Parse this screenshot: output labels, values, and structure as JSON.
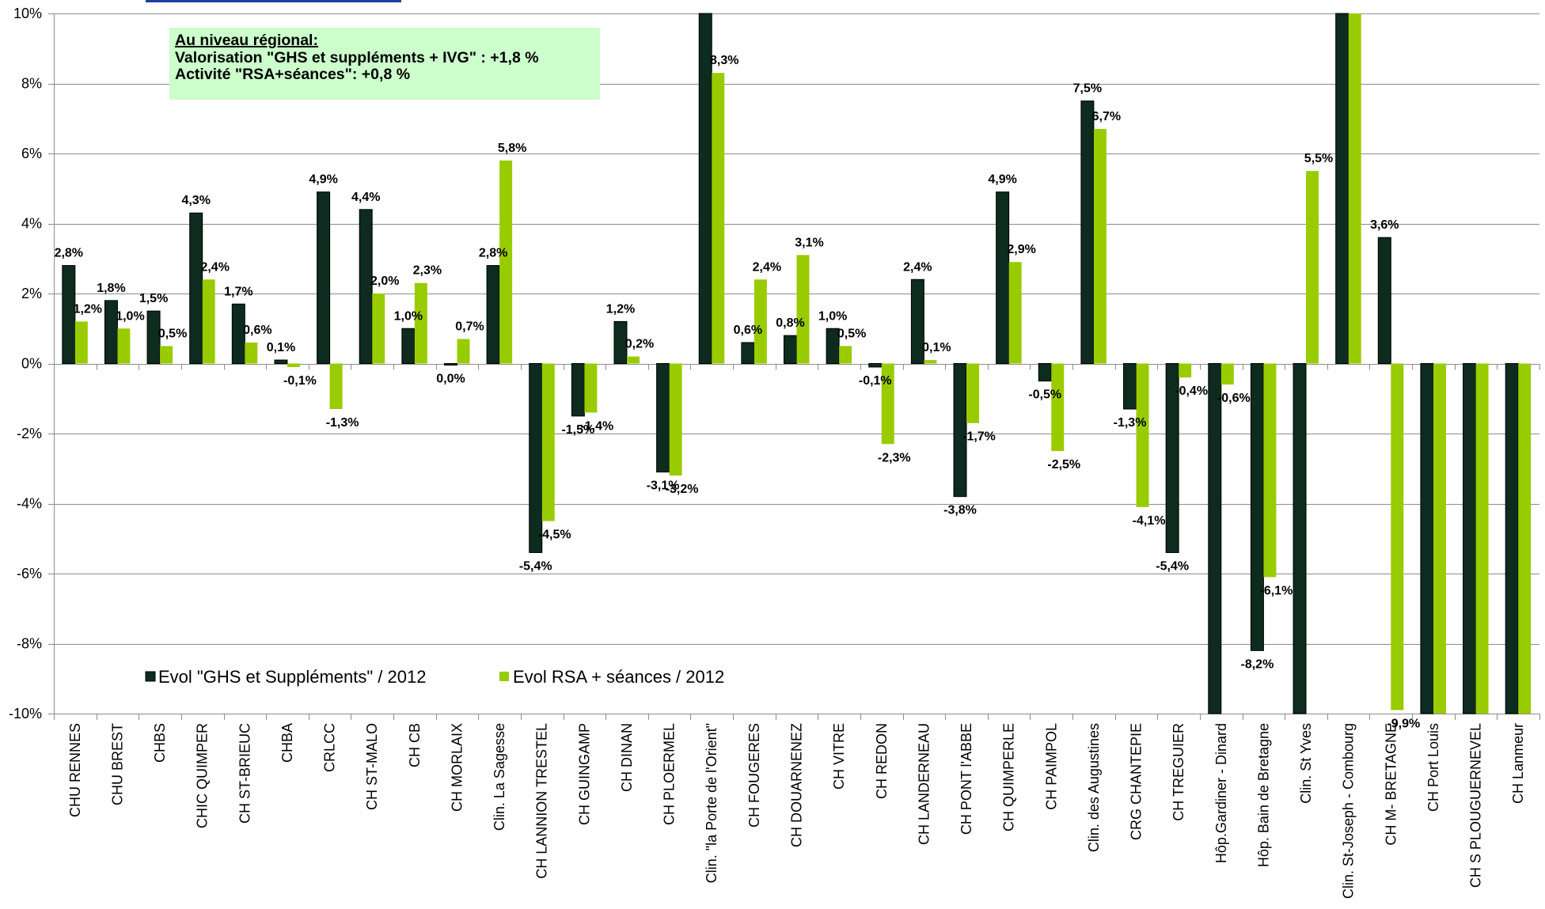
{
  "chart_data": {
    "type": "bar",
    "categories": [
      "CHU RENNES",
      "CHU BREST",
      "CHBS",
      "CHIC QUIMPER",
      "CH ST-BRIEUC",
      "CHBA",
      "CRLCC",
      "CH ST-MALO",
      "CH CB",
      "CH MORLAIX",
      "Clin. La Sagesse",
      "CH LANNION TRESTEL",
      "CH GUINGAMP",
      "CH DINAN",
      "CH PLOERMEL",
      "Clin. \"la Porte de l'Orient\"",
      "CH FOUGERES",
      "CH DOUARNENEZ",
      "CH VITRE",
      "CH REDON",
      "CH LANDERNEAU",
      "CH PONT l'ABBE",
      "CH QUIMPERLE",
      "CH PAIMPOL",
      "Clin. des Augustines",
      "CRG CHANTEPIE",
      "CH TREGUIER",
      "Hôp.Gardiner - Dinard",
      "Hôp. Bain de Bretagne",
      "Clin. St Yves",
      "Clin. St-Joseph - Combourg",
      "CH M- BRETAGNE",
      "CH Port Louis",
      "CH S PLOUGUERNEVEL",
      "CH Lanmeur"
    ],
    "series": [
      {
        "name": "Evol \"GHS et Suppléments\" / 2012",
        "color": "#0d2b1e",
        "outline": "#000000",
        "values": [
          2.8,
          1.8,
          1.5,
          4.3,
          1.7,
          0.1,
          4.9,
          4.4,
          1.0,
          0.0,
          2.8,
          -5.4,
          -1.5,
          1.2,
          -3.1,
          10,
          0.6,
          0.8,
          1.0,
          -0.1,
          2.4,
          -3.8,
          4.9,
          -0.5,
          7.5,
          -1.3,
          -5.4,
          -10,
          -8.2,
          -10,
          10,
          3.6,
          -10,
          -10,
          -10
        ],
        "labels": [
          "2,8%",
          "1,8%",
          "1,5%",
          "4,3%",
          "1,7%",
          "0,1%",
          "4,9%",
          "4,4%",
          "1,0%",
          "0,0%",
          "2,8%",
          "-5,4%",
          "-1,5%",
          "1,2%",
          "-3,1%",
          null,
          "0,6%",
          "0,8%",
          "1,0%",
          "-0,1%",
          "2,4%",
          "-3,8%",
          "4,9%",
          "-0,5%",
          "7,5%",
          "-1,3%",
          "-5,4%",
          null,
          "-8,2%",
          null,
          null,
          "3,6%",
          null,
          null,
          null
        ]
      },
      {
        "name": "Evol RSA + séances / 2012",
        "color": "#99cc00",
        "values": [
          1.2,
          1.0,
          0.5,
          2.4,
          0.6,
          -0.1,
          -1.3,
          2.0,
          2.3,
          0.7,
          5.8,
          -4.5,
          -1.4,
          0.2,
          -3.2,
          8.3,
          2.4,
          3.1,
          0.5,
          -2.3,
          0.1,
          -1.7,
          2.9,
          -2.5,
          6.7,
          -4.1,
          -0.4,
          -0.6,
          -6.1,
          5.5,
          10,
          -9.9,
          -10,
          -10,
          -10
        ],
        "labels": [
          "1,2%",
          "1,0%",
          "0,5%",
          "2,4%",
          "0,6%",
          "-0,1%",
          "-1,3%",
          "2,0%",
          "2,3%",
          "0,7%",
          "5,8%",
          "-4,5%",
          "-1,4%",
          "0,2%",
          "-3,2%",
          "8,3%",
          "2,4%",
          "3,1%",
          "0,5%",
          "-2,3%",
          "0,1%",
          "-1,7%",
          "2,9%",
          "-2,5%",
          "6,7%",
          "-4,1%",
          "-0,4%",
          "-0,6%",
          "-6,1%",
          "5,5%",
          null,
          "-9,9%",
          null,
          null,
          null
        ]
      }
    ],
    "ylim": [
      -10,
      10
    ],
    "y_ticks": [
      10,
      8,
      6,
      4,
      2,
      0,
      -2,
      -4,
      -6,
      -8,
      -10
    ],
    "y_tick_labels": [
      "10%",
      "8%",
      "6%",
      "4%",
      "2%",
      "0%",
      "-2%",
      "-4%",
      "-6%",
      "-8%",
      "-10%"
    ],
    "grid": true,
    "legend_position": "bottom-left",
    "annotation": {
      "heading": "Au niveau régional:",
      "lines": [
        "Valorisation \"GHS et suppléments + IVG\" : +1,8 %",
        "Activité \"RSA+séances\": +0,8 %"
      ],
      "background": "#ccffcc"
    }
  },
  "colors": {
    "top_line": "#1f3d9b",
    "gridline": "#8c8c8c"
  }
}
